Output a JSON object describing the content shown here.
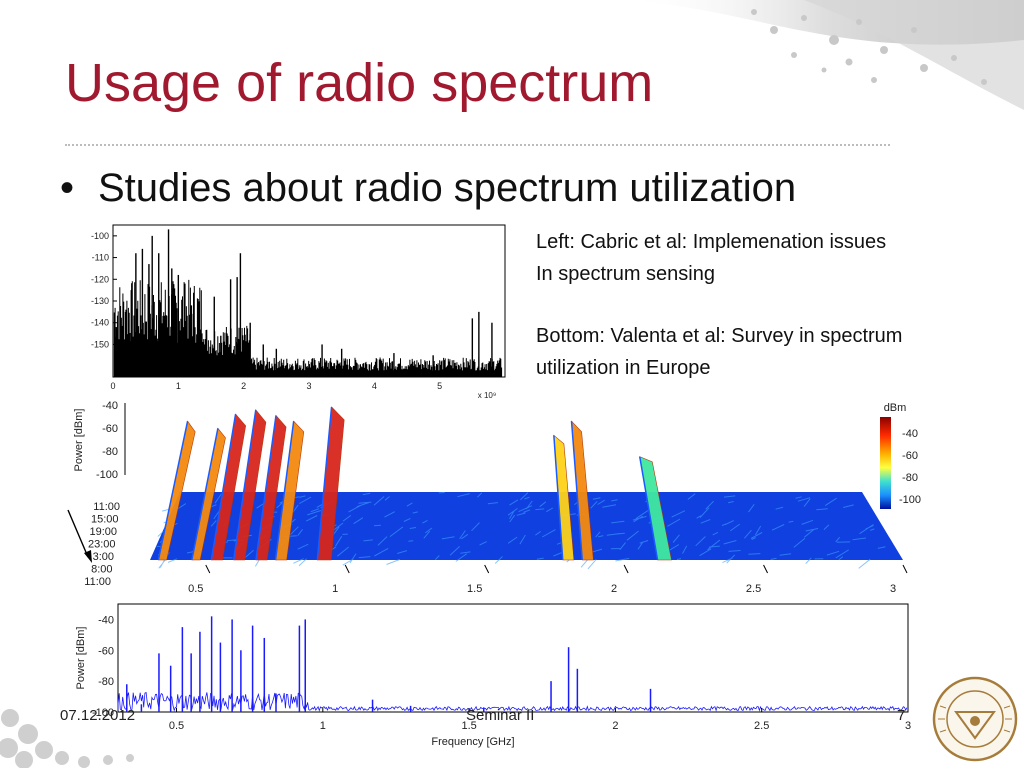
{
  "slide": {
    "title": "Usage of radio spectrum",
    "bullet": "Studies about radio spectrum utilization",
    "note_left": [
      "Left: Cabric et al: Implemenation issues",
      "In spectrum sensing"
    ],
    "note_bottom": [
      "Bottom: Valenta et al: Survey in spectrum",
      "utilization in Europe"
    ]
  },
  "footer": {
    "date": "07.12.2012",
    "title": "Seminar II",
    "page": "7"
  },
  "colors": {
    "title": "#a0192f",
    "trace": "#1a1aff",
    "floor": "#1040e0"
  },
  "chart_data": [
    {
      "type": "bar",
      "title": "",
      "xlabel": "",
      "ylabel": "",
      "xlim": [
        0,
        6
      ],
      "ylim": [
        -165,
        -95
      ],
      "xticks": [
        "0",
        "1",
        "2",
        "3",
        "4",
        "5"
      ],
      "yticks": [
        "-100",
        "-110",
        "-120",
        "-130",
        "-140",
        "-150"
      ],
      "x_exponent": "x 10⁹",
      "peaks": [
        {
          "x": 0.05,
          "y": -142
        },
        {
          "x": 0.12,
          "y": -138
        },
        {
          "x": 0.2,
          "y": -134
        },
        {
          "x": 0.28,
          "y": -125
        },
        {
          "x": 0.35,
          "y": -108
        },
        {
          "x": 0.45,
          "y": -106
        },
        {
          "x": 0.55,
          "y": -113
        },
        {
          "x": 0.6,
          "y": -100
        },
        {
          "x": 0.7,
          "y": -108
        },
        {
          "x": 0.85,
          "y": -97
        },
        {
          "x": 0.9,
          "y": -115
        },
        {
          "x": 1.0,
          "y": -118
        },
        {
          "x": 1.1,
          "y": -122
        },
        {
          "x": 1.2,
          "y": -132
        },
        {
          "x": 1.3,
          "y": -145
        },
        {
          "x": 1.4,
          "y": -150
        },
        {
          "x": 1.55,
          "y": -128
        },
        {
          "x": 1.65,
          "y": -146
        },
        {
          "x": 1.8,
          "y": -120
        },
        {
          "x": 1.9,
          "y": -119
        },
        {
          "x": 1.95,
          "y": -108
        },
        {
          "x": 2.1,
          "y": -140
        },
        {
          "x": 2.3,
          "y": -150
        },
        {
          "x": 2.5,
          "y": -152
        },
        {
          "x": 3.2,
          "y": -150
        },
        {
          "x": 3.5,
          "y": -152
        },
        {
          "x": 4.3,
          "y": -154
        },
        {
          "x": 4.9,
          "y": -155
        },
        {
          "x": 5.5,
          "y": -138
        },
        {
          "x": 5.6,
          "y": -135
        },
        {
          "x": 5.8,
          "y": -140
        }
      ]
    },
    {
      "type": "heatmap",
      "title": "",
      "ylabel": "Power [dBm]",
      "zticks": [
        "-40",
        "-60",
        "-80",
        "-100"
      ],
      "time_ticks": [
        "11:00",
        "15:00",
        "19:00",
        "23:00",
        "3:00",
        "8:00",
        "11:00"
      ],
      "xticks": [
        "0.5",
        "1",
        "1.5",
        "2",
        "2.5",
        "3"
      ],
      "xlim": [
        0.3,
        3
      ],
      "colorbar_title": "dBm",
      "colorbar_ticks": [
        "-40",
        "-60",
        "-80",
        "-100"
      ],
      "bands": [
        {
          "f": 0.33,
          "power": -50,
          "w": 0.03
        },
        {
          "f": 0.45,
          "power": -55,
          "w": 0.03
        },
        {
          "f": 0.52,
          "power": -45,
          "w": 0.04
        },
        {
          "f": 0.6,
          "power": -42,
          "w": 0.04
        },
        {
          "f": 0.68,
          "power": -46,
          "w": 0.04
        },
        {
          "f": 0.75,
          "power": -50,
          "w": 0.04
        },
        {
          "f": 0.9,
          "power": -40,
          "w": 0.05
        },
        {
          "f": 1.78,
          "power": -60,
          "w": 0.04
        },
        {
          "f": 1.85,
          "power": -50,
          "w": 0.04
        },
        {
          "f": 2.12,
          "power": -75,
          "w": 0.05
        }
      ]
    },
    {
      "type": "line",
      "title": "",
      "xlabel": "Frequency [GHz]",
      "ylabel": "Power [dBm]",
      "xlim": [
        0.3,
        3
      ],
      "ylim": [
        -100,
        -30
      ],
      "xticks": [
        "0.5",
        "1",
        "1.5",
        "2",
        "2.5",
        "3"
      ],
      "yticks": [
        "-40",
        "-60",
        "-80",
        "-100"
      ],
      "peaks": [
        {
          "x": 0.33,
          "y": -82
        },
        {
          "x": 0.38,
          "y": -95
        },
        {
          "x": 0.44,
          "y": -62
        },
        {
          "x": 0.48,
          "y": -70
        },
        {
          "x": 0.52,
          "y": -45
        },
        {
          "x": 0.55,
          "y": -62
        },
        {
          "x": 0.58,
          "y": -48
        },
        {
          "x": 0.62,
          "y": -38
        },
        {
          "x": 0.65,
          "y": -55
        },
        {
          "x": 0.69,
          "y": -40
        },
        {
          "x": 0.72,
          "y": -60
        },
        {
          "x": 0.76,
          "y": -44
        },
        {
          "x": 0.8,
          "y": -52
        },
        {
          "x": 0.84,
          "y": -88
        },
        {
          "x": 0.92,
          "y": -44
        },
        {
          "x": 0.94,
          "y": -40
        },
        {
          "x": 1.17,
          "y": -92
        },
        {
          "x": 1.3,
          "y": -96
        },
        {
          "x": 1.55,
          "y": -97
        },
        {
          "x": 1.78,
          "y": -80
        },
        {
          "x": 1.84,
          "y": -58
        },
        {
          "x": 1.87,
          "y": -72
        },
        {
          "x": 2.12,
          "y": -85
        }
      ]
    }
  ]
}
